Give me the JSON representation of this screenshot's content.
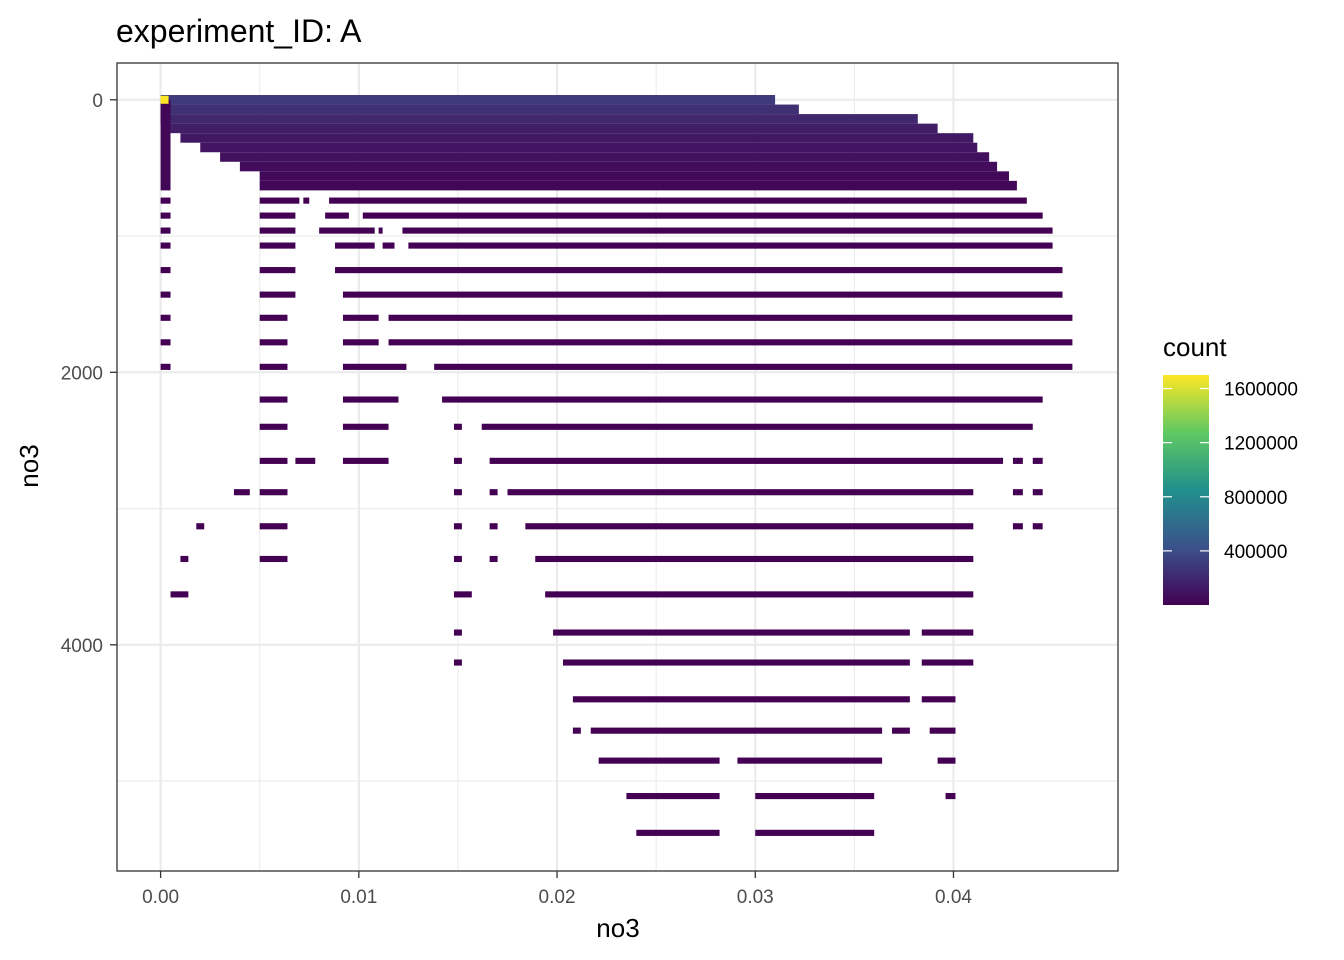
{
  "chart_data": {
    "type": "heatmap",
    "title": "experiment_ID: A",
    "xlabel": "no3",
    "ylabel": "no3",
    "xlim": [
      -0.0022,
      0.0483
    ],
    "ylim": [
      -270,
      5660
    ],
    "y_reversed": true,
    "grid": true,
    "x_ticks": [
      0.0,
      0.01,
      0.02,
      0.03,
      0.04
    ],
    "x_tick_labels": [
      "0.00",
      "0.01",
      "0.02",
      "0.03",
      "0.04"
    ],
    "y_ticks": [
      0,
      2000,
      4000
    ],
    "y_tick_labels": [
      "0",
      "2000",
      "4000"
    ],
    "fill_scale": "viridis",
    "legend": {
      "title": "count",
      "position": "right",
      "min": 1,
      "max": 1700000,
      "breaks": [
        400000,
        800000,
        1200000,
        1600000
      ],
      "break_labels": [
        "400000",
        "800000",
        "1200000",
        "1600000"
      ]
    },
    "colors": {
      "low": "#440154",
      "mid_low": "#31688e",
      "mid": "#21908c",
      "mid_high": "#5ec962",
      "high": "#fde725",
      "grid": "#ebebeb",
      "panel_border": "#333333"
    },
    "top_band": {
      "description": "dense tiles for no3 (y) from 0 to ~650, width decreasing with depth",
      "rows": [
        {
          "y": 0,
          "x_start": 0.0,
          "x_end": 0.031,
          "level": 300000
        },
        {
          "y": 70,
          "x_start": 0.0,
          "x_end": 0.0322,
          "level": 250000
        },
        {
          "y": 140,
          "x_start": 0.0,
          "x_end": 0.0382,
          "level": 200000
        },
        {
          "y": 210,
          "x_start": 0.0005,
          "x_end": 0.0392,
          "level": 150000
        },
        {
          "y": 280,
          "x_start": 0.001,
          "x_end": 0.041,
          "level": 120000
        },
        {
          "y": 350,
          "x_start": 0.002,
          "x_end": 0.0412,
          "level": 100000
        },
        {
          "y": 420,
          "x_start": 0.003,
          "x_end": 0.0418,
          "level": 80000
        },
        {
          "y": 490,
          "x_start": 0.004,
          "x_end": 0.0422,
          "level": 60000
        },
        {
          "y": 560,
          "x_start": 0.005,
          "x_end": 0.0428,
          "level": 40000
        },
        {
          "y": 630,
          "x_start": 0.005,
          "x_end": 0.0432,
          "level": 30000
        }
      ],
      "left_column": {
        "x_start": 0.0,
        "x_end": 0.0005,
        "y_start": 0,
        "y_end": 630
      }
    },
    "hot_cell": {
      "x": 0.0002,
      "y": 0,
      "count": 1700000
    },
    "lines": [
      {
        "y": 740,
        "segments": [
          [
            0.0,
            0.0005
          ],
          [
            0.005,
            0.007
          ],
          [
            0.0072,
            0.0075
          ],
          [
            0.0085,
            0.0437
          ]
        ]
      },
      {
        "y": 850,
        "segments": [
          [
            0.0,
            0.0005
          ],
          [
            0.005,
            0.0068
          ],
          [
            0.0083,
            0.0095
          ],
          [
            0.0102,
            0.0445
          ]
        ]
      },
      {
        "y": 960,
        "segments": [
          [
            0.0,
            0.0005
          ],
          [
            0.005,
            0.0068
          ],
          [
            0.008,
            0.0108
          ],
          [
            0.011,
            0.0112
          ],
          [
            0.0122,
            0.045
          ]
        ]
      },
      {
        "y": 1070,
        "segments": [
          [
            0.0,
            0.0005
          ],
          [
            0.005,
            0.0068
          ],
          [
            0.0088,
            0.0108
          ],
          [
            0.0112,
            0.0118
          ],
          [
            0.0125,
            0.045
          ]
        ]
      },
      {
        "y": 1250,
        "segments": [
          [
            0.0,
            0.0005
          ],
          [
            0.005,
            0.0068
          ],
          [
            0.0088,
            0.0455
          ]
        ]
      },
      {
        "y": 1430,
        "segments": [
          [
            0.0,
            0.0005
          ],
          [
            0.005,
            0.0068
          ],
          [
            0.0092,
            0.0455
          ]
        ]
      },
      {
        "y": 1600,
        "segments": [
          [
            0.0,
            0.0005
          ],
          [
            0.005,
            0.0064
          ],
          [
            0.0092,
            0.011
          ],
          [
            0.0115,
            0.046
          ]
        ]
      },
      {
        "y": 1780,
        "segments": [
          [
            0.0,
            0.0005
          ],
          [
            0.005,
            0.0064
          ],
          [
            0.0092,
            0.011
          ],
          [
            0.0115,
            0.046
          ]
        ]
      },
      {
        "y": 1960,
        "segments": [
          [
            0.0,
            0.0005
          ],
          [
            0.005,
            0.0064
          ],
          [
            0.0092,
            0.0124
          ],
          [
            0.0138,
            0.046
          ]
        ]
      },
      {
        "y": 2200,
        "segments": [
          [
            0.005,
            0.0064
          ],
          [
            0.0092,
            0.012
          ],
          [
            0.0142,
            0.0445
          ]
        ]
      },
      {
        "y": 2400,
        "segments": [
          [
            0.005,
            0.0064
          ],
          [
            0.0092,
            0.0115
          ],
          [
            0.0148,
            0.0152
          ],
          [
            0.0162,
            0.044
          ]
        ]
      },
      {
        "y": 2650,
        "segments": [
          [
            0.005,
            0.0064
          ],
          [
            0.0068,
            0.0078
          ],
          [
            0.0092,
            0.0115
          ],
          [
            0.0148,
            0.0152
          ],
          [
            0.0166,
            0.0425
          ],
          [
            0.043,
            0.0435
          ],
          [
            0.044,
            0.0445
          ]
        ]
      },
      {
        "y": 2880,
        "segments": [
          [
            0.0037,
            0.0045
          ],
          [
            0.005,
            0.0064
          ],
          [
            0.0148,
            0.0152
          ],
          [
            0.0166,
            0.017
          ],
          [
            0.0175,
            0.041
          ],
          [
            0.043,
            0.0435
          ],
          [
            0.044,
            0.0445
          ]
        ]
      },
      {
        "y": 3130,
        "segments": [
          [
            0.0018,
            0.0022
          ],
          [
            0.005,
            0.0064
          ],
          [
            0.0148,
            0.0152
          ],
          [
            0.0166,
            0.017
          ],
          [
            0.0184,
            0.041
          ],
          [
            0.043,
            0.0435
          ],
          [
            0.044,
            0.0445
          ]
        ]
      },
      {
        "y": 3370,
        "segments": [
          [
            0.001,
            0.0014
          ],
          [
            0.005,
            0.0064
          ],
          [
            0.0148,
            0.0152
          ],
          [
            0.0166,
            0.017
          ],
          [
            0.0189,
            0.041
          ]
        ]
      },
      {
        "y": 3630,
        "segments": [
          [
            0.0005,
            0.0014
          ],
          [
            0.0148,
            0.0157
          ],
          [
            0.0194,
            0.041
          ]
        ]
      },
      {
        "y": 3910,
        "segments": [
          [
            0.0148,
            0.0152
          ],
          [
            0.0198,
            0.0378
          ],
          [
            0.0384,
            0.041
          ]
        ]
      },
      {
        "y": 4130,
        "segments": [
          [
            0.0148,
            0.0152
          ],
          [
            0.0203,
            0.0378
          ],
          [
            0.0384,
            0.041
          ]
        ]
      },
      {
        "y": 4400,
        "segments": [
          [
            0.0208,
            0.0378
          ],
          [
            0.0384,
            0.0401
          ]
        ]
      },
      {
        "y": 4630,
        "segments": [
          [
            0.0208,
            0.0212
          ],
          [
            0.0217,
            0.0364
          ],
          [
            0.0369,
            0.0378
          ],
          [
            0.0388,
            0.0401
          ]
        ]
      },
      {
        "y": 4850,
        "segments": [
          [
            0.0221,
            0.0282
          ],
          [
            0.0291,
            0.0364
          ],
          [
            0.0392,
            0.0401
          ]
        ]
      },
      {
        "y": 5110,
        "segments": [
          [
            0.0235,
            0.0282
          ],
          [
            0.03,
            0.036
          ],
          [
            0.0396,
            0.0401
          ]
        ]
      },
      {
        "y": 5380,
        "segments": [
          [
            0.024,
            0.0282
          ],
          [
            0.03,
            0.036
          ]
        ]
      }
    ]
  }
}
